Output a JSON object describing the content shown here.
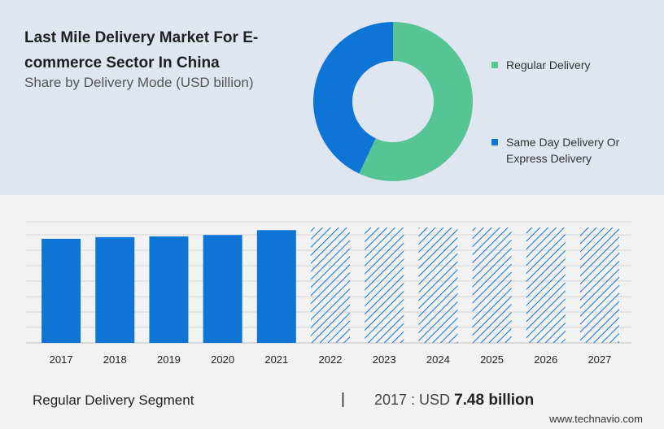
{
  "header": {
    "title": "Last Mile Delivery Market For E-commerce Sector In China",
    "subtitle": "Share by Delivery Mode (USD billion)"
  },
  "legend": [
    {
      "label": "Regular Delivery",
      "color": "#56c596"
    },
    {
      "label": "Same Day Delivery Or Express Delivery",
      "color": "#0e74d6"
    }
  ],
  "chart_data": [
    {
      "type": "pie",
      "title": "Share by Delivery Mode (USD billion)",
      "donut": true,
      "categories": [
        "Regular Delivery",
        "Same Day Delivery Or Express Delivery"
      ],
      "values": [
        57,
        43
      ],
      "colors": [
        "#56c596",
        "#0e74d6"
      ]
    },
    {
      "type": "bar",
      "categories": [
        "2017",
        "2018",
        "2019",
        "2020",
        "2021",
        "2022",
        "2023",
        "2024",
        "2025",
        "2026",
        "2027"
      ],
      "values": [
        7.48,
        7.6,
        7.65,
        7.75,
        8.1,
        null,
        null,
        null,
        null,
        null,
        null
      ],
      "forecast": [
        false,
        false,
        false,
        false,
        false,
        true,
        true,
        true,
        true,
        true,
        true
      ],
      "ylim": [
        0,
        8.7
      ],
      "grid": true,
      "bar_color": "#0e74d6",
      "forecast_color": "#0e74d6"
    }
  ],
  "footer": {
    "segment": "Regular Delivery Segment",
    "divider": "|",
    "value_prefix": "2017 : USD",
    "value": "7.48 billion",
    "source": "www.technavio.com"
  }
}
